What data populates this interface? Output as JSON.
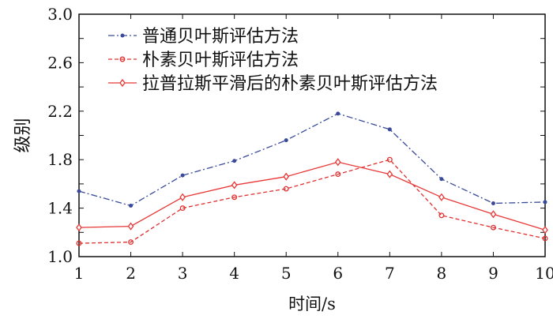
{
  "chart_data": {
    "type": "line",
    "title": "",
    "xlabel": "时间/s",
    "ylabel": "级别",
    "xlim": [
      1,
      10
    ],
    "ylim": [
      1.0,
      3.0
    ],
    "x": [
      1,
      2,
      3,
      4,
      5,
      6,
      7,
      8,
      9,
      10
    ],
    "xticks": [
      "1",
      "2",
      "3",
      "4",
      "5",
      "6",
      "7",
      "8",
      "9",
      "10"
    ],
    "yticks": [
      "1.0",
      "1.4",
      "1.8",
      "2.2",
      "2.6",
      "3.0"
    ],
    "ytick_values": [
      1.0,
      1.4,
      1.8,
      2.2,
      2.6,
      3.0
    ],
    "grid": false,
    "legend_position": "top-left",
    "series": [
      {
        "name": "普通贝叶斯评估方法",
        "color": "#3a4a9a",
        "style": "dashdot",
        "marker": "star",
        "values": [
          1.54,
          1.42,
          1.67,
          1.79,
          1.96,
          2.18,
          2.05,
          1.64,
          1.44,
          1.45
        ]
      },
      {
        "name": "朴素贝叶斯评估方法",
        "color": "#e03030",
        "style": "dashed",
        "marker": "circle",
        "values": [
          1.11,
          1.12,
          1.4,
          1.49,
          1.56,
          1.68,
          1.8,
          1.34,
          1.24,
          1.15
        ]
      },
      {
        "name": "拉普拉斯平滑后的朴素贝叶斯评估方法",
        "color": "#e83838",
        "style": "solid",
        "marker": "diamond",
        "values": [
          1.24,
          1.25,
          1.49,
          1.59,
          1.66,
          1.78,
          1.68,
          1.49,
          1.35,
          1.22
        ]
      }
    ]
  }
}
